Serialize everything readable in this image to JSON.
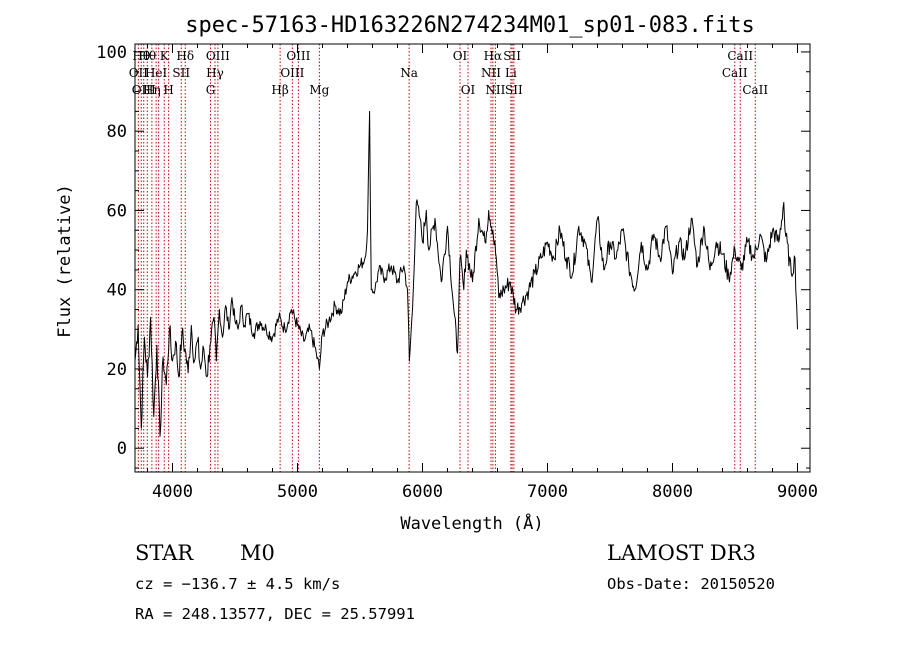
{
  "chart_data": {
    "type": "line",
    "title": "spec-57163-HD163226N274234M01_sp01-083.fits",
    "xlabel": "Wavelength (Å)",
    "ylabel": "Flux (relative)",
    "xlim": [
      3700,
      9100
    ],
    "ylim": [
      -6,
      102
    ],
    "xticks": [
      4000,
      5000,
      6000,
      7000,
      8000,
      9000
    ],
    "yticks": [
      0,
      20,
      40,
      60,
      80,
      100
    ],
    "grid": false,
    "series": [
      {
        "x": [
          3700,
          3725,
          3750,
          3775,
          3800,
          3825,
          3850,
          3875,
          3900,
          3925,
          3950,
          3975,
          4000,
          4025,
          4050,
          4075,
          4100,
          4125,
          4150,
          4175,
          4200,
          4225,
          4250,
          4275,
          4300,
          4325,
          4340,
          4350,
          4375,
          4400,
          4425,
          4450,
          4475,
          4500,
          4525,
          4550,
          4575,
          4600,
          4650,
          4700,
          4750,
          4800,
          4850,
          4900,
          4950,
          5000,
          5050,
          5100,
          5150,
          5175,
          5200,
          5250,
          5300,
          5350,
          5400,
          5450,
          5500,
          5540,
          5560,
          5577,
          5590,
          5620,
          5650,
          5700,
          5750,
          5800,
          5850,
          5880,
          5895,
          5920,
          5950,
          5980,
          6000,
          6030,
          6050,
          6100,
          6150,
          6200,
          6250,
          6280,
          6300,
          6330,
          6350,
          6400,
          6450,
          6500,
          6530,
          6563,
          6590,
          6610,
          6650,
          6700,
          6750,
          6800,
          6850,
          6900,
          6950,
          7000,
          7050,
          7100,
          7150,
          7200,
          7250,
          7300,
          7350,
          7400,
          7450,
          7500,
          7550,
          7600,
          7650,
          7700,
          7750,
          7800,
          7850,
          7900,
          7950,
          8000,
          8050,
          8100,
          8150,
          8200,
          8250,
          8300,
          8350,
          8400,
          8450,
          8500,
          8550,
          8600,
          8650,
          8700,
          8750,
          8800,
          8850,
          8890,
          8900,
          8950,
          8980,
          9000
        ],
        "y": [
          22,
          31,
          5,
          28,
          18,
          33,
          8,
          26,
          3,
          23,
          16,
          30,
          22,
          27,
          18,
          29,
          25,
          19,
          31,
          22,
          27,
          20,
          25,
          18,
          26,
          32,
          30,
          22,
          35,
          28,
          36,
          30,
          38,
          32,
          30,
          36,
          31,
          34,
          29,
          32,
          30,
          28,
          33,
          30,
          35,
          31,
          27,
          30,
          24,
          20,
          29,
          32,
          36,
          34,
          42,
          44,
          46,
          48,
          55,
          85,
          40,
          40,
          45,
          43,
          46,
          42,
          46,
          40,
          22,
          35,
          62,
          58,
          52,
          60,
          50,
          58,
          42,
          56,
          35,
          24,
          48,
          40,
          50,
          42,
          58,
          52,
          60,
          55,
          48,
          38,
          40,
          42,
          35,
          37,
          40,
          44,
          48,
          52,
          48,
          55,
          48,
          44,
          56,
          52,
          42,
          58,
          45,
          52,
          48,
          55,
          46,
          40,
          52,
          45,
          54,
          48,
          56,
          44,
          52,
          48,
          58,
          46,
          56,
          45,
          52,
          49,
          43,
          50,
          45,
          52,
          48,
          54,
          47,
          55,
          52,
          62,
          55,
          44,
          48,
          30
        ]
      }
    ],
    "line_markers": [
      {
        "x": 3727,
        "label": "OII",
        "row": 1
      },
      {
        "x": 3750,
        "label": "Hθ",
        "row": 0
      },
      {
        "x": 3770,
        "label": "OIII",
        "row": 2
      },
      {
        "x": 3798,
        "label": "Hθ",
        "row": 0
      },
      {
        "x": 3835,
        "label": "Hη",
        "row": 2
      },
      {
        "x": 3869,
        "label": "HeI",
        "row": 1
      },
      {
        "x": 3889,
        "label": "",
        "row": 1
      },
      {
        "x": 3934,
        "label": "K",
        "row": 0
      },
      {
        "x": 3969,
        "label": "H",
        "row": 2
      },
      {
        "x": 4070,
        "label": "SII",
        "row": 1
      },
      {
        "x": 4102,
        "label": "Hδ",
        "row": 0
      },
      {
        "x": 4304,
        "label": "G",
        "row": 2
      },
      {
        "x": 4340,
        "label": "Hγ",
        "row": 1
      },
      {
        "x": 4363,
        "label": "OIII",
        "row": 0
      },
      {
        "x": 4861,
        "label": "Hβ",
        "row": 2
      },
      {
        "x": 4959,
        "label": "OIII",
        "row": 1
      },
      {
        "x": 5007,
        "label": "OIII",
        "row": 0
      },
      {
        "x": 5175,
        "label": "Mg",
        "row": 2
      },
      {
        "x": 5893,
        "label": "Na",
        "row": 1
      },
      {
        "x": 6300,
        "label": "OI",
        "row": 0
      },
      {
        "x": 6364,
        "label": "OI",
        "row": 2
      },
      {
        "x": 6548,
        "label": "NII",
        "row": 1
      },
      {
        "x": 6563,
        "label": "Hα",
        "row": 0
      },
      {
        "x": 6583,
        "label": "NII",
        "row": 2
      },
      {
        "x": 6707,
        "label": "Li",
        "row": 1
      },
      {
        "x": 6717,
        "label": "SII",
        "row": 0
      },
      {
        "x": 6731,
        "label": "SII",
        "row": 2
      },
      {
        "x": 8498,
        "label": "CaII",
        "row": 1
      },
      {
        "x": 8542,
        "label": "CaII",
        "row": 0
      },
      {
        "x": 8662,
        "label": "CaII",
        "row": 2
      }
    ]
  },
  "info": {
    "object_class": "STAR",
    "subclass": "M0",
    "survey": "LAMOST DR3",
    "cz": "cz = −136.7 ± 4.5 km/s",
    "obs_date": "Obs-Date: 20150520",
    "coords": "RA = 248.13577, DEC =  25.57991"
  },
  "colors": {
    "marker": "#cc0000",
    "spectrum": "#000000",
    "axis": "#000000",
    "background": "#ffffff"
  }
}
